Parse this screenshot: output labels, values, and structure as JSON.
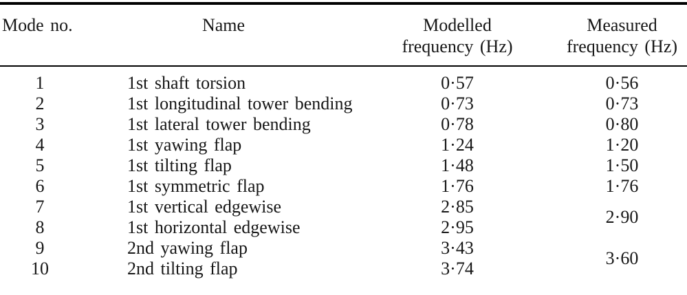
{
  "table": {
    "headers": {
      "mode": "Mode no.",
      "name": "Name",
      "modelled_line1": "Modelled",
      "modelled_line2": "frequency (Hz)",
      "measured_line1": "Measured",
      "measured_line2": "frequency (Hz)"
    },
    "rows": [
      {
        "mode": "1",
        "name": "1st shaft torsion",
        "modelled": "0·57",
        "measured": "0·56"
      },
      {
        "mode": "2",
        "name": "1st longitudinal tower bending",
        "modelled": "0·73",
        "measured": "0·73"
      },
      {
        "mode": "3",
        "name": "1st lateral tower bending",
        "modelled": "0·78",
        "measured": "0·80"
      },
      {
        "mode": "4",
        "name": "1st yawing flap",
        "modelled": "1·24",
        "measured": "1·20"
      },
      {
        "mode": "5",
        "name": "1st tilting flap",
        "modelled": "1·48",
        "measured": "1·50"
      },
      {
        "mode": "6",
        "name": "1st symmetric flap",
        "modelled": "1·76",
        "measured": "1·76"
      },
      {
        "mode": "7",
        "name": "1st vertical edgewise",
        "modelled": "2·85",
        "measured": "2·90",
        "measured_rowspan": 2
      },
      {
        "mode": "8",
        "name": "1st horizontal edgewise",
        "modelled": "2·95",
        "measured": null
      },
      {
        "mode": "9",
        "name": "2nd yawing flap",
        "modelled": "3·43",
        "measured": "3·60",
        "measured_rowspan": 2
      },
      {
        "mode": "10",
        "name": "2nd tilting flap",
        "modelled": "3·74",
        "measured": null
      }
    ],
    "colors": {
      "text": "#161616",
      "rule": "#000000",
      "background": "#ffffff"
    }
  }
}
